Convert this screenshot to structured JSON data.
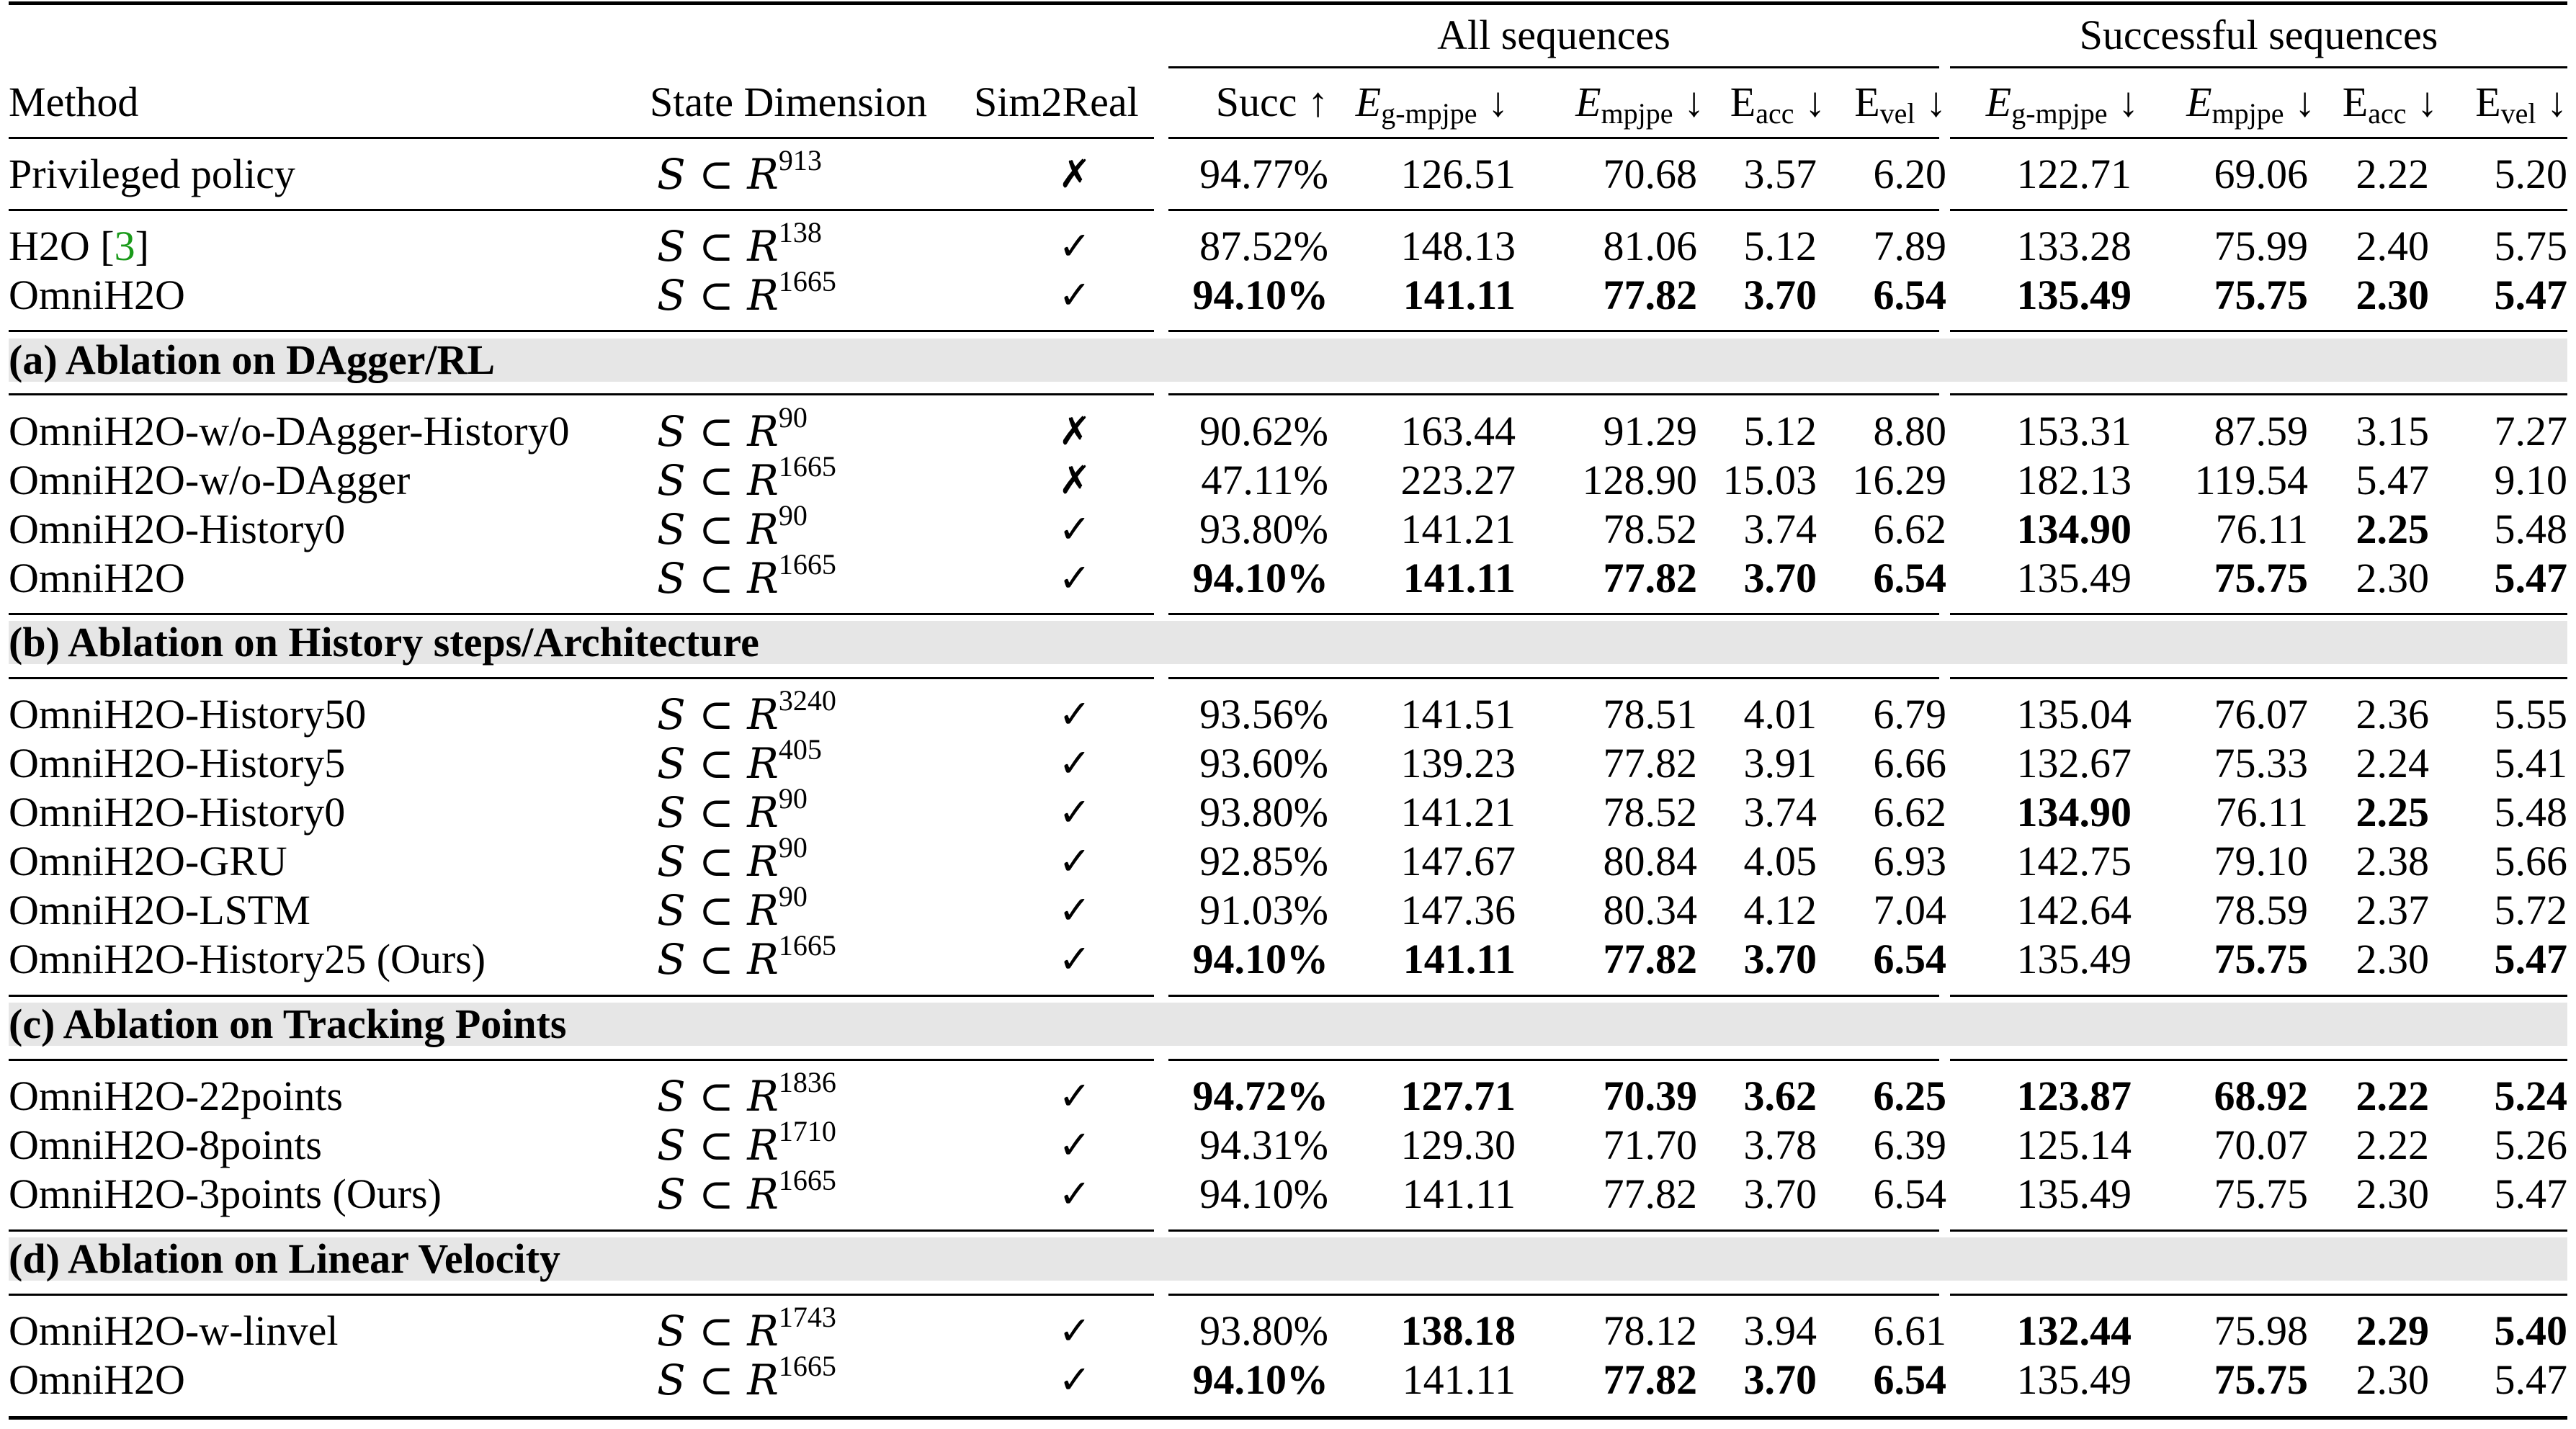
{
  "header": {
    "groups": [
      "All sequences",
      "Successful sequences"
    ],
    "method": "Method",
    "state_dimension": "State Dimension",
    "sim2real": "Sim2Real",
    "succ": "Succ ↑",
    "E": "E",
    "gmpjpe_sub": "g-mpjpe",
    "mpjpe_sub": "mpjpe",
    "acc_sub": "acc",
    "vel_sub": "vel",
    "down": "↓"
  },
  "state_prefix": "S ⊂ R",
  "sections": [
    {
      "title": "",
      "rows": [
        {
          "method": "Privileged policy",
          "dim": "913",
          "sim2real": "✗",
          "all": [
            "94.77%",
            "126.51",
            "70.68",
            "3.57",
            "6.20"
          ],
          "all_bold": [
            false,
            false,
            false,
            false,
            false
          ],
          "succ": [
            "122.71",
            "69.06",
            "2.22",
            "5.20"
          ],
          "succ_bold": [
            false,
            false,
            false,
            false
          ]
        }
      ]
    },
    {
      "title": "",
      "rows": [
        {
          "method": "H2O",
          "cite": "3",
          "dim": "138",
          "sim2real": "✓",
          "all": [
            "87.52%",
            "148.13",
            "81.06",
            "5.12",
            "7.89"
          ],
          "all_bold": [
            false,
            false,
            false,
            false,
            false
          ],
          "succ": [
            "133.28",
            "75.99",
            "2.40",
            "5.75"
          ],
          "succ_bold": [
            false,
            false,
            false,
            false
          ]
        },
        {
          "method": "OmniH2O",
          "dim": "1665",
          "sim2real": "✓",
          "all": [
            "94.10%",
            "141.11",
            "77.82",
            "3.70",
            "6.54"
          ],
          "all_bold": [
            true,
            true,
            true,
            true,
            true
          ],
          "succ": [
            "135.49",
            "75.75",
            "2.30",
            "5.47"
          ],
          "succ_bold": [
            true,
            true,
            true,
            true
          ]
        }
      ]
    },
    {
      "title": "(a) Ablation on DAgger/RL",
      "rows": [
        {
          "method": "OmniH2O-w/o-DAgger-History0",
          "dim": "90",
          "sim2real": "✗",
          "all": [
            "90.62%",
            "163.44",
            "91.29",
            "5.12",
            "8.80"
          ],
          "all_bold": [
            false,
            false,
            false,
            false,
            false
          ],
          "succ": [
            "153.31",
            "87.59",
            "3.15",
            "7.27"
          ],
          "succ_bold": [
            false,
            false,
            false,
            false
          ]
        },
        {
          "method": "OmniH2O-w/o-DAgger",
          "dim": "1665",
          "sim2real": "✗",
          "all": [
            "47.11%",
            "223.27",
            "128.90",
            "15.03",
            "16.29"
          ],
          "all_bold": [
            false,
            false,
            false,
            false,
            false
          ],
          "succ": [
            "182.13",
            "119.54",
            "5.47",
            "9.10"
          ],
          "succ_bold": [
            false,
            false,
            false,
            false
          ]
        },
        {
          "method": "OmniH2O-History0",
          "dim": "90",
          "sim2real": "✓",
          "all": [
            "93.80%",
            "141.21",
            "78.52",
            "3.74",
            "6.62"
          ],
          "all_bold": [
            false,
            false,
            false,
            false,
            false
          ],
          "succ": [
            "134.90",
            "76.11",
            "2.25",
            "5.48"
          ],
          "succ_bold": [
            true,
            false,
            true,
            false
          ]
        },
        {
          "method": "OmniH2O",
          "dim": "1665",
          "sim2real": "✓",
          "all": [
            "94.10%",
            "141.11",
            "77.82",
            "3.70",
            "6.54"
          ],
          "all_bold": [
            true,
            true,
            true,
            true,
            true
          ],
          "succ": [
            "135.49",
            "75.75",
            "2.30",
            "5.47"
          ],
          "succ_bold": [
            false,
            true,
            false,
            true
          ]
        }
      ]
    },
    {
      "title": "(b) Ablation on History steps/Architecture",
      "rows": [
        {
          "method": "OmniH2O-History50",
          "dim": "3240",
          "sim2real": "✓",
          "all": [
            "93.56%",
            "141.51",
            "78.51",
            "4.01",
            "6.79"
          ],
          "all_bold": [
            false,
            false,
            false,
            false,
            false
          ],
          "succ": [
            "135.04",
            "76.07",
            "2.36",
            "5.55"
          ],
          "succ_bold": [
            false,
            false,
            false,
            false
          ]
        },
        {
          "method": "OmniH2O-History5",
          "dim": "405",
          "sim2real": "✓",
          "all": [
            "93.60%",
            "139.23",
            "77.82",
            "3.91",
            "6.66"
          ],
          "all_bold": [
            false,
            false,
            false,
            false,
            false
          ],
          "succ": [
            "132.67",
            "75.33",
            "2.24",
            "5.41"
          ],
          "succ_bold": [
            false,
            false,
            false,
            false
          ]
        },
        {
          "method": "OmniH2O-History0",
          "dim": "90",
          "sim2real": "✓",
          "all": [
            "93.80%",
            "141.21",
            "78.52",
            "3.74",
            "6.62"
          ],
          "all_bold": [
            false,
            false,
            false,
            false,
            false
          ],
          "succ": [
            "134.90",
            "76.11",
            "2.25",
            "5.48"
          ],
          "succ_bold": [
            true,
            false,
            true,
            false
          ]
        },
        {
          "method": "OmniH2O-GRU",
          "dim": "90",
          "sim2real": "✓",
          "all": [
            "92.85%",
            "147.67",
            "80.84",
            "4.05",
            "6.93"
          ],
          "all_bold": [
            false,
            false,
            false,
            false,
            false
          ],
          "succ": [
            "142.75",
            "79.10",
            "2.38",
            "5.66"
          ],
          "succ_bold": [
            false,
            false,
            false,
            false
          ]
        },
        {
          "method": "OmniH2O-LSTM",
          "dim": "90",
          "sim2real": "✓",
          "all": [
            "91.03%",
            "147.36",
            "80.34",
            "4.12",
            "7.04"
          ],
          "all_bold": [
            false,
            false,
            false,
            false,
            false
          ],
          "succ": [
            "142.64",
            "78.59",
            "2.37",
            "5.72"
          ],
          "succ_bold": [
            false,
            false,
            false,
            false
          ]
        },
        {
          "method": "OmniH2O-History25 (Ours)",
          "dim": "1665",
          "sim2real": "✓",
          "all": [
            "94.10%",
            "141.11",
            "77.82",
            "3.70",
            "6.54"
          ],
          "all_bold": [
            true,
            true,
            true,
            true,
            true
          ],
          "succ": [
            "135.49",
            "75.75",
            "2.30",
            "5.47"
          ],
          "succ_bold": [
            false,
            true,
            false,
            true
          ]
        }
      ]
    },
    {
      "title": "(c) Ablation on Tracking Points",
      "rows": [
        {
          "method": "OmniH2O-22points",
          "dim": "1836",
          "sim2real": "✓",
          "all": [
            "94.72%",
            "127.71",
            "70.39",
            "3.62",
            "6.25"
          ],
          "all_bold": [
            true,
            true,
            true,
            true,
            true
          ],
          "succ": [
            "123.87",
            "68.92",
            "2.22",
            "5.24"
          ],
          "succ_bold": [
            true,
            true,
            true,
            true
          ]
        },
        {
          "method": "OmniH2O-8points",
          "dim": "1710",
          "sim2real": "✓",
          "all": [
            "94.31%",
            "129.30",
            "71.70",
            "3.78",
            "6.39"
          ],
          "all_bold": [
            false,
            false,
            false,
            false,
            false
          ],
          "succ": [
            "125.14",
            "70.07",
            "2.22",
            "5.26"
          ],
          "succ_bold": [
            false,
            false,
            false,
            false
          ]
        },
        {
          "method": "OmniH2O-3points (Ours)",
          "dim": "1665",
          "sim2real": "✓",
          "all": [
            "94.10%",
            "141.11",
            "77.82",
            "3.70",
            "6.54"
          ],
          "all_bold": [
            false,
            false,
            false,
            false,
            false
          ],
          "succ": [
            "135.49",
            "75.75",
            "2.30",
            "5.47"
          ],
          "succ_bold": [
            false,
            false,
            false,
            false
          ]
        }
      ]
    },
    {
      "title": "(d) Ablation on Linear Velocity",
      "rows": [
        {
          "method": "OmniH2O-w-linvel",
          "dim": "1743",
          "sim2real": "✓",
          "all": [
            "93.80%",
            "138.18",
            "78.12",
            "3.94",
            "6.61"
          ],
          "all_bold": [
            false,
            true,
            false,
            false,
            false
          ],
          "succ": [
            "132.44",
            "75.98",
            "2.29",
            "5.40"
          ],
          "succ_bold": [
            true,
            false,
            true,
            true
          ]
        },
        {
          "method": "OmniH2O",
          "dim": "1665",
          "sim2real": "✓",
          "all": [
            "94.10%",
            "141.11",
            "77.82",
            "3.70",
            "6.54"
          ],
          "all_bold": [
            true,
            false,
            true,
            true,
            true
          ],
          "succ": [
            "135.49",
            "75.75",
            "2.30",
            "5.47"
          ],
          "succ_bold": [
            false,
            true,
            false,
            false
          ]
        }
      ]
    }
  ]
}
